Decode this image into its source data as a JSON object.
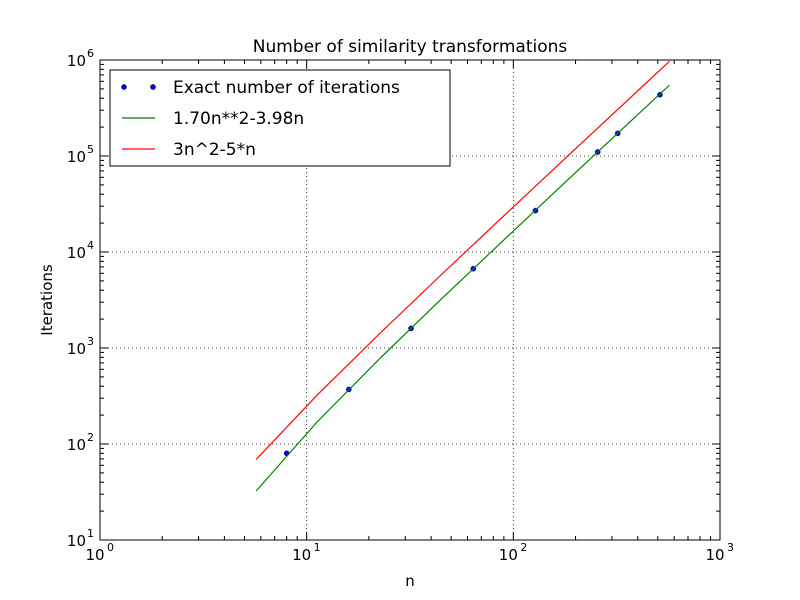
{
  "chart_data": {
    "type": "line",
    "title": "Number of similarity transformations",
    "xlabel": "n",
    "ylabel": "Iterations",
    "xscale": "log",
    "yscale": "log",
    "xlim": [
      1,
      1000
    ],
    "ylim": [
      10,
      1000000
    ],
    "x_ticks": [
      {
        "base": "10",
        "exp": "0",
        "value": 1
      },
      {
        "base": "10",
        "exp": "1",
        "value": 10
      },
      {
        "base": "10",
        "exp": "2",
        "value": 100
      },
      {
        "base": "10",
        "exp": "3",
        "value": 1000
      }
    ],
    "y_ticks": [
      {
        "base": "10",
        "exp": "1",
        "value": 10
      },
      {
        "base": "10",
        "exp": "2",
        "value": 100
      },
      {
        "base": "10",
        "exp": "3",
        "value": 1000
      },
      {
        "base": "10",
        "exp": "4",
        "value": 10000
      },
      {
        "base": "10",
        "exp": "5",
        "value": 100000
      },
      {
        "base": "10",
        "exp": "6",
        "value": 1000000
      }
    ],
    "grid": true,
    "legend_position": "top-left",
    "series": [
      {
        "name": "Exact number of iterations",
        "style": "markers",
        "color": "#0000ff",
        "x": [
          8,
          16,
          32,
          64,
          128,
          256,
          320,
          512
        ],
        "y": [
          80,
          370,
          1600,
          6700,
          27000,
          110000,
          172000,
          435000
        ]
      },
      {
        "name": "1.70n**2-3.98n",
        "style": "line",
        "color": "#008000",
        "x": [
          5.7,
          11.3,
          22.6,
          45.2,
          90.5,
          181,
          362,
          569
        ],
        "y": [
          32.5,
          172,
          778,
          3290,
          13500,
          55000,
          221000,
          546000
        ]
      },
      {
        "name": "3n^2-5*n",
        "style": "line",
        "color": "#ff0000",
        "x": [
          5.7,
          11.3,
          22.6,
          45.2,
          90.5,
          181,
          362,
          569
        ],
        "y": [
          69,
          327,
          1420,
          5900,
          24100,
          97400,
          391000,
          968000
        ]
      }
    ]
  }
}
